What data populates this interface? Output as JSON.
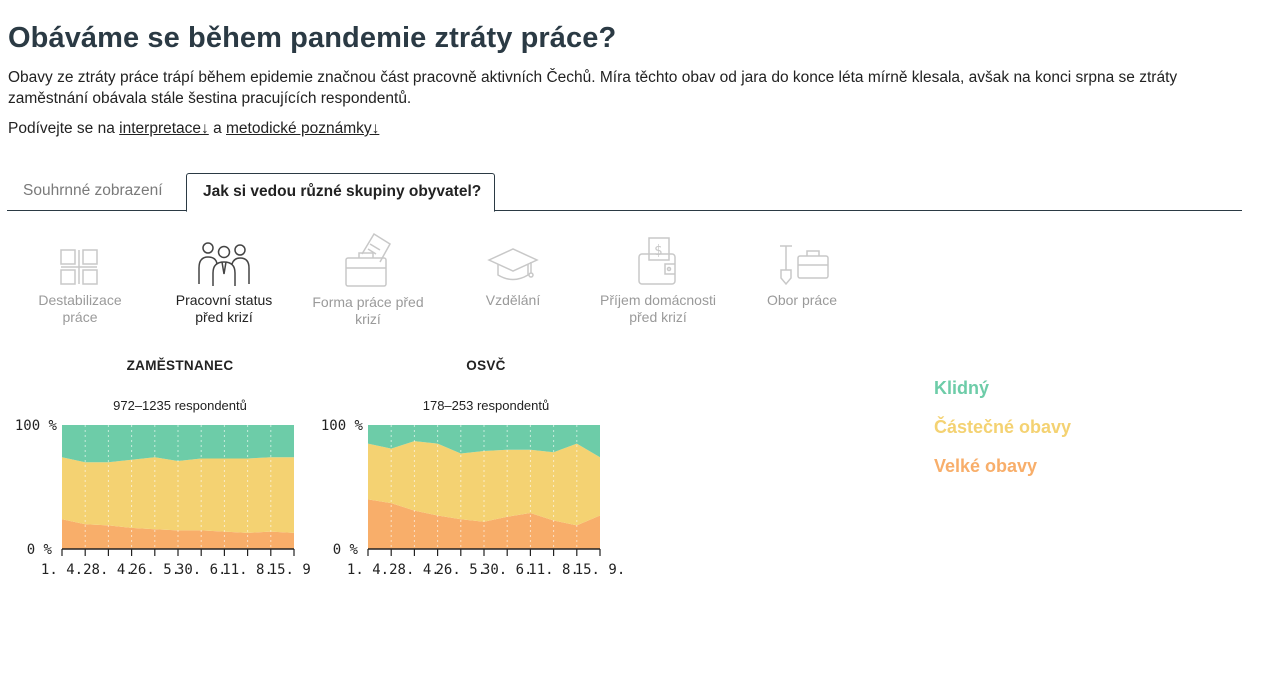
{
  "header": {
    "title": "Obáváme se během pandemie ztráty práce?",
    "intro": "Obavy ze ztráty práce trápí během epidemie značnou část pracovně aktivních Čechů. Míra těchto obav od jara do konce léta mírně klesala, avšak na konci srpna se ztráty zaměstnání obávala stále šestina pracujících respondentů.",
    "links_prefix": "Podívejte se na ",
    "link1": "interpretace↓",
    "links_mid": " a ",
    "link2": "metodické poznámky↓"
  },
  "tabs": [
    {
      "label": "Souhrnné zobrazení"
    },
    {
      "label": "Jak si vedou různé skupiny obyvatel?"
    }
  ],
  "categories": [
    {
      "label": "Destabilizace práce",
      "icon": "grid-icon"
    },
    {
      "label": "Pracovní status před krizí",
      "icon": "people-icon",
      "selected": true
    },
    {
      "label": "Forma práce před krizí",
      "icon": "briefcase-document-icon"
    },
    {
      "label": "Vzdělání",
      "icon": "graduation-cap-icon"
    },
    {
      "label": "Příjem domácnosti před krizí",
      "icon": "wallet-icon"
    },
    {
      "label": "Obor práce",
      "icon": "shovel-briefcase-icon"
    }
  ],
  "legend": [
    {
      "label": "Klidný",
      "color": "#6dcca8"
    },
    {
      "label": "Částečné obavy",
      "color": "#f4d272"
    },
    {
      "label": "Velké obavy",
      "color": "#f8ae6a"
    }
  ],
  "chart_data": [
    {
      "type": "area",
      "stacked": true,
      "title": "ZAMĚSTNANEC",
      "subtitle": "972–1235 respondentů",
      "x": [
        "1. 4.",
        "14. 4.",
        "28. 4.",
        "12. 5.",
        "26. 5.",
        "9. 6.",
        "30. 6.",
        "21. 7.",
        "11. 8.",
        "25. 8.",
        "15. 9."
      ],
      "x_tick_labels": [
        "1. 4.",
        "28. 4.",
        "26. 5.",
        "30. 6.",
        "11. 8.",
        "15. 9."
      ],
      "y_tick_labels": [
        "100 %",
        "0 %"
      ],
      "ylim": [
        0,
        100
      ],
      "series": [
        {
          "name": "Velké obavy",
          "color": "#f8ae6a",
          "values": [
            24,
            20,
            19,
            17,
            16,
            15,
            15,
            14,
            13,
            14,
            13
          ]
        },
        {
          "name": "Částečné obavy",
          "color": "#f4d272",
          "values": [
            50,
            50,
            51,
            55,
            58,
            56,
            58,
            59,
            60,
            60,
            61
          ]
        },
        {
          "name": "Klidný",
          "color": "#6dcca8",
          "values": [
            26,
            30,
            30,
            28,
            26,
            29,
            27,
            27,
            27,
            26,
            26
          ]
        }
      ]
    },
    {
      "type": "area",
      "stacked": true,
      "title": "OSVČ",
      "subtitle": "178–253 respondentů",
      "x": [
        "1. 4.",
        "14. 4.",
        "28. 4.",
        "12. 5.",
        "26. 5.",
        "9. 6.",
        "30. 6.",
        "21. 7.",
        "11. 8.",
        "25. 8.",
        "15. 9."
      ],
      "x_tick_labels": [
        "1. 4.",
        "28. 4.",
        "26. 5.",
        "30. 6.",
        "11. 8.",
        "15. 9."
      ],
      "y_tick_labels": [
        "100 %",
        "0 %"
      ],
      "ylim": [
        0,
        100
      ],
      "series": [
        {
          "name": "Velké obavy",
          "color": "#f8ae6a",
          "values": [
            40,
            37,
            31,
            27,
            24,
            22,
            26,
            29,
            23,
            19,
            27
          ]
        },
        {
          "name": "Částečné obavy",
          "color": "#f4d272",
          "values": [
            45,
            44,
            56,
            58,
            53,
            57,
            54,
            51,
            55,
            66,
            47
          ]
        },
        {
          "name": "Klidný",
          "color": "#6dcca8",
          "values": [
            15,
            19,
            13,
            15,
            23,
            21,
            20,
            20,
            22,
            15,
            26
          ]
        }
      ]
    }
  ]
}
